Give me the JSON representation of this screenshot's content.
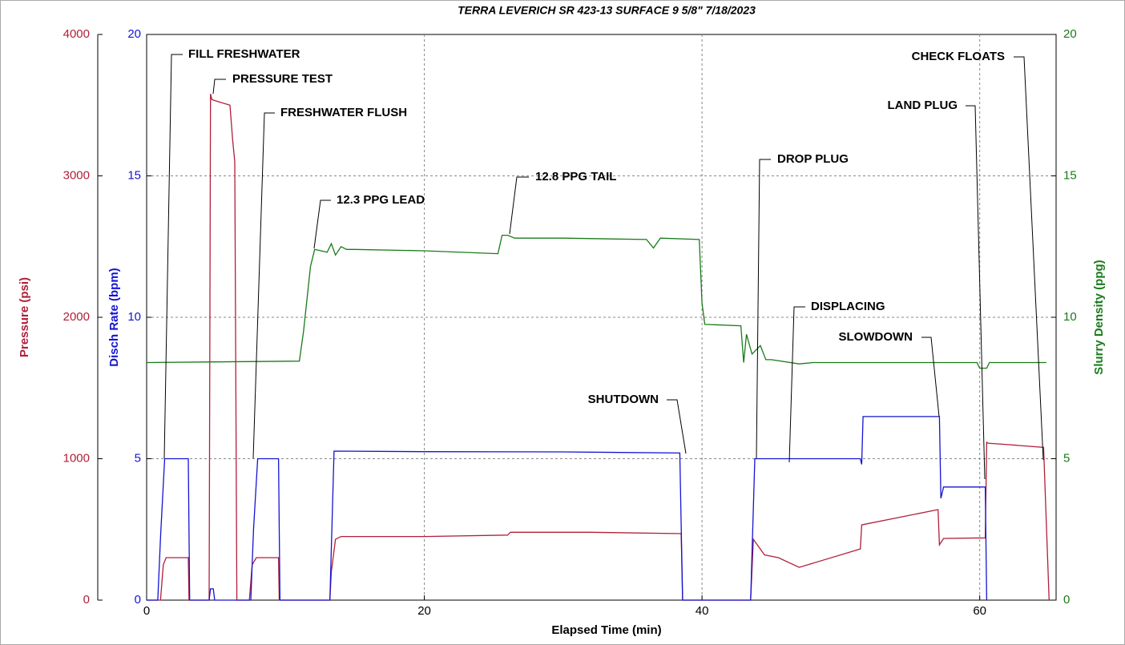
{
  "chart_data": {
    "type": "line",
    "title": "TERRA LEVERICH SR 423-13 SURFACE 9 5/8\" 7/18/2023",
    "xlabel": "Elapsed Time (min)",
    "ylabel": "Pressure (psi)",
    "y2label": "Disch Rate (bpm)",
    "y3label": "Slurry Density (ppg)",
    "xlim": [
      0,
      65.5
    ],
    "xticks": [
      0,
      20,
      40,
      60
    ],
    "ylim": [
      0,
      4000
    ],
    "yticks": [
      0,
      1000,
      2000,
      3000,
      4000
    ],
    "y2lim": [
      0,
      20
    ],
    "y2ticks": [
      0,
      5,
      10,
      15,
      20
    ],
    "y3lim": [
      0,
      20
    ],
    "y3ticks": [
      0,
      5,
      10,
      15,
      20
    ],
    "grid": true,
    "series": [
      {
        "name": "Pressure",
        "axis": "y",
        "color": "#b0203a",
        "x": [
          0,
          1.0,
          1.2,
          1.4,
          3.0,
          3.05,
          4.5,
          4.6,
          4.7,
          5.0,
          6.0,
          6.2,
          6.35,
          6.5,
          7.4,
          7.6,
          7.9,
          9.5,
          9.55,
          13.2,
          13.3,
          13.6,
          14,
          20,
          26,
          26.2,
          32,
          38.5,
          38.6,
          43.5,
          43.7,
          44.5,
          45.5,
          47,
          51.4,
          51.5,
          57.0,
          57.1,
          57.4,
          60.4,
          60.5,
          60.6,
          62,
          64.6,
          65.0
        ],
        "values": [
          0,
          0,
          250,
          300,
          300,
          0,
          0,
          3580,
          3540,
          3530,
          3500,
          3250,
          3100,
          0,
          0,
          250,
          300,
          300,
          0,
          0,
          200,
          430,
          450,
          450,
          460,
          480,
          480,
          470,
          0,
          0,
          430,
          320,
          300,
          232,
          362,
          532,
          640,
          391,
          436,
          440,
          1116,
          1110,
          1100,
          1080,
          0
        ]
      },
      {
        "name": "Disch Rate",
        "axis": "y2",
        "color": "#1414d2",
        "x": [
          0,
          0.8,
          1.0,
          1.3,
          3.0,
          3.1,
          4.5,
          4.6,
          4.8,
          4.9,
          7.5,
          7.7,
          8.0,
          9.5,
          9.6,
          13.2,
          13.5,
          20,
          30,
          38.4,
          38.6,
          43.5,
          43.8,
          51.4,
          51.5,
          51.6,
          57.1,
          57.2,
          57.4,
          60.4,
          60.5
        ],
        "values": [
          0,
          0,
          2.2,
          5,
          5,
          0,
          0,
          0.4,
          0.4,
          0,
          0,
          2.5,
          5,
          5,
          0,
          0,
          5.27,
          5.25,
          5.24,
          5.2,
          0,
          0,
          5,
          5,
          4.8,
          6.49,
          6.49,
          3.6,
          4.0,
          4.0,
          0
        ]
      },
      {
        "name": "Slurry Density",
        "axis": "y3",
        "color": "#1a7a1a",
        "x": [
          0,
          11.0,
          11.3,
          11.8,
          12.1,
          13.0,
          13.3,
          13.6,
          14.0,
          14.4,
          15,
          20,
          25.3,
          25.6,
          26.0,
          26.5,
          30,
          36,
          36.5,
          37,
          39.8,
          40.0,
          40.2,
          42.8,
          43.0,
          43.2,
          43.6,
          44.2,
          44.6,
          45,
          47,
          48,
          59.8,
          60.0,
          60.5,
          60.7,
          64.8
        ],
        "values": [
          8.4,
          8.45,
          9.5,
          11.8,
          12.4,
          12.3,
          12.6,
          12.2,
          12.5,
          12.4,
          12.4,
          12.35,
          12.25,
          12.9,
          12.9,
          12.8,
          12.8,
          12.75,
          12.45,
          12.8,
          12.75,
          10.5,
          9.75,
          9.7,
          8.4,
          9.4,
          8.7,
          9.0,
          8.5,
          8.5,
          8.35,
          8.4,
          8.4,
          8.2,
          8.2,
          8.4,
          8.4
        ]
      }
    ],
    "annotations": [
      "FILL FRESHWATER",
      "PRESSURE TEST",
      "FRESHWATER FLUSH",
      "12.3 PPG LEAD",
      "12.8 PPG TAIL",
      "SHUTDOWN",
      "DROP PLUG",
      "DISPLACING",
      "SLOWDOWN",
      "LAND PLUG",
      "CHECK FLOATS"
    ]
  }
}
